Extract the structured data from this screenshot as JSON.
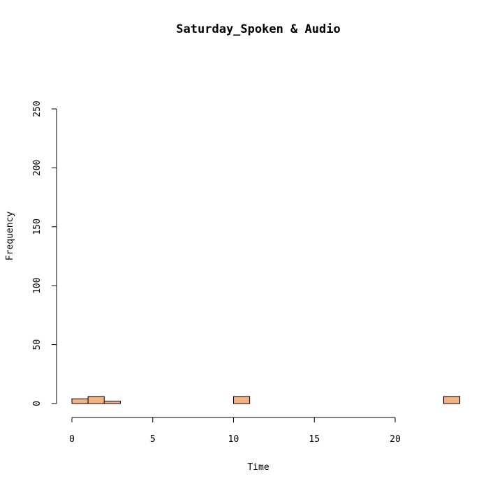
{
  "chart_data": {
    "type": "bar",
    "title": "Saturday_Spoken & Audio",
    "xlabel": "Time",
    "ylabel": "Frequency",
    "xlim": [
      0,
      24
    ],
    "ylim": [
      0,
      250
    ],
    "x_ticks": [
      0,
      5,
      10,
      15,
      20
    ],
    "x_tick_labels": [
      "0",
      "5",
      "10",
      "15",
      "20"
    ],
    "y_ticks": [
      0,
      50,
      100,
      150,
      200,
      250
    ],
    "y_tick_labels": [
      "0",
      "50",
      "100",
      "150",
      "200",
      "250"
    ],
    "bin_width": 1,
    "bins": [
      {
        "x0": 0,
        "x1": 1,
        "value": 4
      },
      {
        "x0": 1,
        "x1": 2,
        "value": 6
      },
      {
        "x0": 2,
        "x1": 3,
        "value": 2
      },
      {
        "x0": 3,
        "x1": 4,
        "value": 0
      },
      {
        "x0": 4,
        "x1": 5,
        "value": 0
      },
      {
        "x0": 5,
        "x1": 6,
        "value": 0
      },
      {
        "x0": 6,
        "x1": 7,
        "value": 0
      },
      {
        "x0": 7,
        "x1": 8,
        "value": 0
      },
      {
        "x0": 8,
        "x1": 9,
        "value": 0
      },
      {
        "x0": 9,
        "x1": 10,
        "value": 0
      },
      {
        "x0": 10,
        "x1": 11,
        "value": 6
      },
      {
        "x0": 11,
        "x1": 12,
        "value": 0
      },
      {
        "x0": 12,
        "x1": 13,
        "value": 0
      },
      {
        "x0": 13,
        "x1": 14,
        "value": 0
      },
      {
        "x0": 14,
        "x1": 15,
        "value": 0
      },
      {
        "x0": 15,
        "x1": 16,
        "value": 0
      },
      {
        "x0": 16,
        "x1": 17,
        "value": 0
      },
      {
        "x0": 17,
        "x1": 18,
        "value": 0
      },
      {
        "x0": 18,
        "x1": 19,
        "value": 0
      },
      {
        "x0": 19,
        "x1": 20,
        "value": 0
      },
      {
        "x0": 20,
        "x1": 21,
        "value": 0
      },
      {
        "x0": 21,
        "x1": 22,
        "value": 0
      },
      {
        "x0": 22,
        "x1": 23,
        "value": 0
      },
      {
        "x0": 23,
        "x1": 24,
        "value": 6
      }
    ],
    "bar_color": "#f4b183",
    "grid": false
  }
}
